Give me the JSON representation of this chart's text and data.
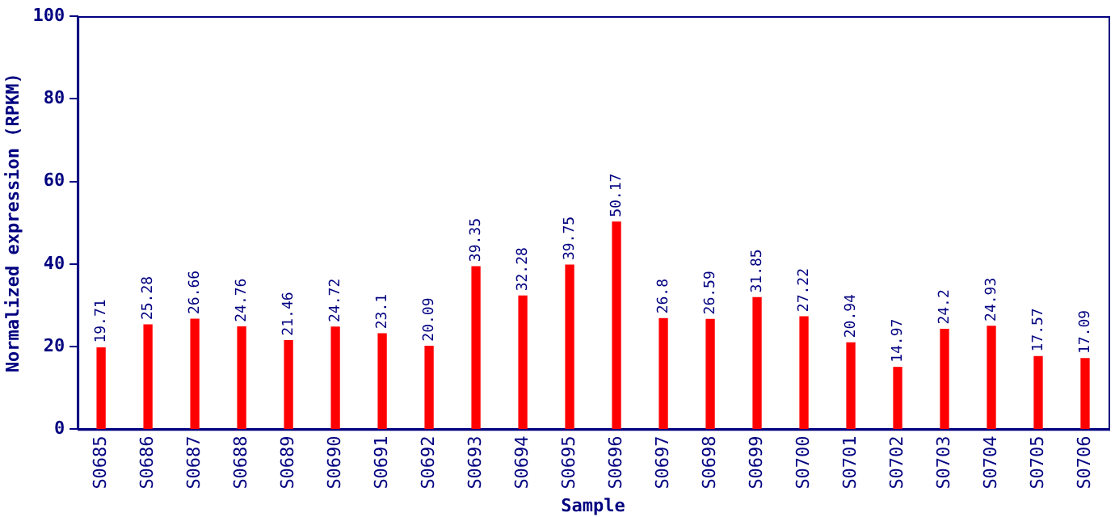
{
  "chart_data": {
    "type": "bar",
    "xlabel": "Sample",
    "ylabel": "Normalized expression (RPKM)",
    "categories": [
      "S0685",
      "S0686",
      "S0687",
      "S0688",
      "S0689",
      "S0690",
      "S0691",
      "S0692",
      "S0693",
      "S0694",
      "S0695",
      "S0696",
      "S0697",
      "S0698",
      "S0699",
      "S0700",
      "S0701",
      "S0702",
      "S0703",
      "S0704",
      "S0705",
      "S0706"
    ],
    "values": [
      19.71,
      25.28,
      26.66,
      24.76,
      21.46,
      24.72,
      23.1,
      20.09,
      39.35,
      32.28,
      39.75,
      50.17,
      26.8,
      26.59,
      31.85,
      27.22,
      20.94,
      14.97,
      24.2,
      24.93,
      17.57,
      17.09
    ],
    "color": "#ff0000",
    "ylim": [
      0,
      100
    ],
    "yticks": [
      0,
      20,
      40,
      60,
      80,
      100
    ],
    "grid": false,
    "legend": false,
    "data_labels": true
  }
}
